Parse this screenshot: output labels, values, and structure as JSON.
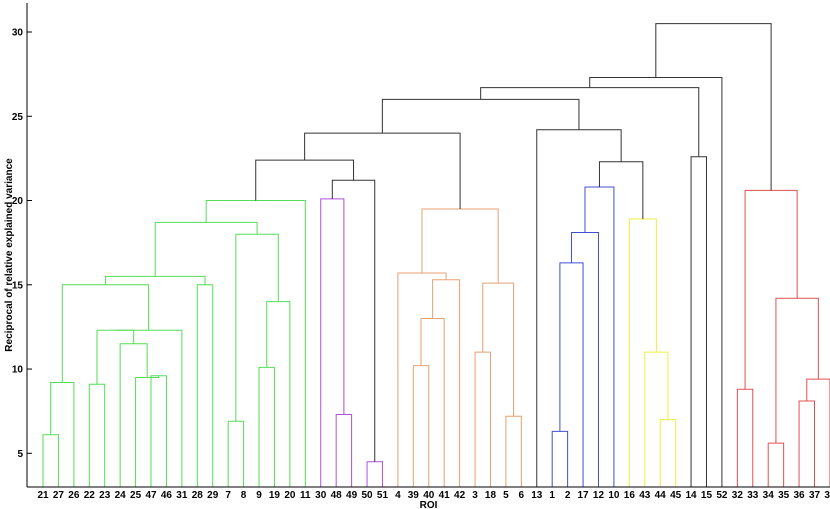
{
  "chart_data": {
    "type": "dendrogram",
    "xlabel": "ROI",
    "ylabel": "Reciprocal of relative explained variance",
    "ylim": [
      3,
      32
    ],
    "yticks": [
      5,
      10,
      15,
      20,
      25,
      30
    ],
    "leaf_order": [
      21,
      27,
      26,
      22,
      23,
      24,
      25,
      47,
      46,
      31,
      28,
      29,
      7,
      8,
      9,
      19,
      20,
      11,
      30,
      48,
      49,
      50,
      51,
      4,
      39,
      40,
      41,
      42,
      3,
      18,
      5,
      6,
      13,
      1,
      2,
      17,
      12,
      10,
      16,
      43,
      44,
      45,
      14,
      15,
      52,
      32,
      33,
      34,
      35,
      36,
      37,
      38
    ],
    "colors": {
      "green": "#55dd55",
      "purple": "#b050e0",
      "orange": "#e8a070",
      "blue": "#4050d0",
      "yellow": "#eeee40",
      "red": "#e05050",
      "black": "#333333"
    },
    "links": [
      {
        "a": 21,
        "b": 27,
        "h": 6.1,
        "c": "green"
      },
      {
        "a": 26,
        "b": "m1",
        "h": 9.2,
        "c": "green",
        "id": "m2"
      },
      {
        "a": 22,
        "b": 23,
        "h": 9.1,
        "c": "green",
        "id": "m3"
      },
      {
        "a": 47,
        "b": 46,
        "h": 9.6,
        "c": "green",
        "id": "m4"
      },
      {
        "a": 25,
        "b": "m4",
        "h": 9.5,
        "c": "green",
        "id": "m5"
      },
      {
        "a": 24,
        "b": "m5",
        "h": 11.5,
        "c": "green",
        "id": "m6"
      },
      {
        "a": "m3",
        "b": "m6",
        "h": 12.3,
        "c": "green",
        "id": "m7"
      },
      {
        "a": "m7",
        "b": 31,
        "h": 12.3,
        "c": "green",
        "id": "m8"
      },
      {
        "a": "m2",
        "b": "m8",
        "h": 15.0,
        "c": "green",
        "id": "m9"
      },
      {
        "a": 28,
        "b": 29,
        "h": 15.0,
        "c": "green",
        "id": "m10"
      },
      {
        "a": "m9",
        "b": "m10",
        "h": 15.5,
        "c": "green",
        "id": "m11"
      },
      {
        "a": 7,
        "b": 8,
        "h": 6.9,
        "c": "green",
        "id": "m12"
      },
      {
        "a": 9,
        "b": 19,
        "h": 10.1,
        "c": "green",
        "id": "m13"
      },
      {
        "a": "m13",
        "b": 20,
        "h": 14.0,
        "c": "green",
        "id": "m14"
      },
      {
        "a": "m12",
        "b": "m14",
        "h": 18.0,
        "c": "green",
        "id": "m15"
      },
      {
        "a": "m11",
        "b": "m15",
        "h": 18.7,
        "c": "green",
        "id": "m16"
      },
      {
        "a": "m16",
        "b": 11,
        "h": 20.0,
        "c": "green",
        "id": "m17"
      },
      {
        "a": 48,
        "b": 49,
        "h": 7.3,
        "c": "purple",
        "id": "m18"
      },
      {
        "a": 30,
        "b": "m18",
        "h": 20.1,
        "c": "purple",
        "id": "m19"
      },
      {
        "a": 50,
        "b": 51,
        "h": 4.5,
        "c": "purple",
        "id": "m20"
      },
      {
        "a": "m19",
        "b": "m20",
        "h": 21.2,
        "c": "black",
        "id": "m21"
      },
      {
        "a": "m17",
        "b": "m21",
        "h": 22.4,
        "c": "black",
        "id": "m22"
      },
      {
        "a": 39,
        "b": 40,
        "h": 10.2,
        "c": "orange",
        "id": "m23"
      },
      {
        "a": "m23",
        "b": 41,
        "h": 13.0,
        "c": "orange",
        "id": "m24"
      },
      {
        "a": "m24",
        "b": 42,
        "h": 15.3,
        "c": "orange",
        "id": "m25"
      },
      {
        "a": 4,
        "b": "m25",
        "h": 15.7,
        "c": "orange",
        "id": "m26"
      },
      {
        "a": 3,
        "b": 18,
        "h": 11.0,
        "c": "orange",
        "id": "m27"
      },
      {
        "a": 5,
        "b": 6,
        "h": 7.2,
        "c": "orange",
        "id": "m28"
      },
      {
        "a": "m27",
        "b": "m28",
        "h": 15.1,
        "c": "orange",
        "id": "m29"
      },
      {
        "a": "m26",
        "b": "m29",
        "h": 19.5,
        "c": "orange",
        "id": "m30"
      },
      {
        "a": "m22",
        "b": "m30",
        "h": 24.0,
        "c": "black",
        "id": "m31"
      },
      {
        "a": 1,
        "b": 2,
        "h": 6.3,
        "c": "blue",
        "id": "m32"
      },
      {
        "a": "m32",
        "b": 17,
        "h": 16.3,
        "c": "blue",
        "id": "m33"
      },
      {
        "a": "m33",
        "b": 12,
        "h": 18.1,
        "c": "blue",
        "id": "m34"
      },
      {
        "a": "m34",
        "b": 10,
        "h": 20.8,
        "c": "blue",
        "id": "m35"
      },
      {
        "a": 44,
        "b": 45,
        "h": 7.0,
        "c": "yellow",
        "id": "m36"
      },
      {
        "a": 43,
        "b": "m36",
        "h": 11.0,
        "c": "yellow",
        "id": "m37"
      },
      {
        "a": 16,
        "b": "m37",
        "h": 18.9,
        "c": "yellow",
        "id": "m38"
      },
      {
        "a": "m35",
        "b": "m38",
        "h": 22.3,
        "c": "black",
        "id": "m39"
      },
      {
        "a": 13,
        "b": "m39",
        "h": 24.2,
        "c": "black",
        "id": "m40"
      },
      {
        "a": "m31",
        "b": "m40",
        "h": 26.0,
        "c": "black",
        "id": "m41"
      },
      {
        "a": 14,
        "b": 15,
        "h": 22.6,
        "c": "black",
        "id": "m42"
      },
      {
        "a": "m41",
        "b": "m42",
        "h": 26.7,
        "c": "black",
        "id": "m43"
      },
      {
        "a": "m43",
        "b": 52,
        "h": 27.3,
        "c": "black",
        "id": "m44"
      },
      {
        "a": 32,
        "b": 33,
        "h": 8.8,
        "c": "red",
        "id": "m45"
      },
      {
        "a": 34,
        "b": 35,
        "h": 5.6,
        "c": "red",
        "id": "m46"
      },
      {
        "a": 36,
        "b": 37,
        "h": 8.1,
        "c": "red",
        "id": "m47"
      },
      {
        "a": "m47",
        "b": 38,
        "h": 9.4,
        "c": "red",
        "id": "m48"
      },
      {
        "a": "m46",
        "b": "m48",
        "h": 14.2,
        "c": "red",
        "id": "m49"
      },
      {
        "a": "m45",
        "b": "m49",
        "h": 20.6,
        "c": "red",
        "id": "m50"
      },
      {
        "a": "m44",
        "b": "m50",
        "h": 30.5,
        "c": "black",
        "id": "m51"
      }
    ]
  }
}
